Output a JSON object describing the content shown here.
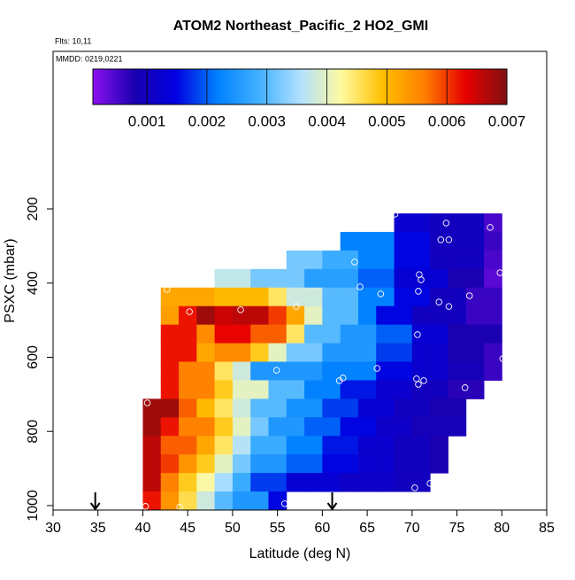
{
  "chart_data": {
    "type": "heatmap",
    "title": "ATOM2 Northeast_Pacific_2 HO2_GMI",
    "subtitle_flights": "Flts: 10,11",
    "subtitle_dates": "MMDD: 0219,0221",
    "xlabel": "Latitude (deg N)",
    "ylabel": "PSXC (mbar)",
    "xlim": [
      30,
      85
    ],
    "xticks": [
      30,
      35,
      40,
      45,
      50,
      55,
      60,
      65,
      70,
      75,
      80,
      85
    ],
    "ylim": [
      1012,
      -225
    ],
    "yticks": [
      200,
      400,
      600,
      800,
      1000
    ],
    "colorbar": {
      "lim": [
        0.0001,
        0.007
      ],
      "ticks": [
        0.001,
        0.002,
        0.003,
        0.004,
        0.005,
        0.006,
        0.007
      ],
      "colors": [
        "#8b10f0",
        "#1a00b0",
        "#0000e0",
        "#0080ff",
        "#40b0ff",
        "#b0e0ff",
        "#fffaa0",
        "#ffc000",
        "#ff8000",
        "#e80000",
        "#801010"
      ]
    },
    "grid": {
      "lat_edges": [
        40,
        42,
        44,
        46,
        48,
        50,
        52,
        54,
        56,
        58,
        60,
        62,
        64,
        66,
        68,
        70,
        72,
        74,
        76,
        78,
        80
      ],
      "pressure_edges": [
        212,
        262,
        312,
        362,
        412,
        462,
        512,
        562,
        612,
        662,
        712,
        762,
        812,
        862,
        912,
        962,
        1012
      ],
      "values": [
        [
          null,
          null,
          null,
          null,
          null,
          null,
          null,
          null,
          null,
          null,
          null,
          null,
          null,
          null,
          0.0012,
          0.0012,
          0.001,
          0.001,
          0.001,
          0.0005
        ],
        [
          null,
          null,
          null,
          null,
          null,
          null,
          null,
          null,
          null,
          null,
          null,
          0.0022,
          0.0022,
          0.0022,
          0.0015,
          0.0015,
          0.001,
          0.001,
          0.001,
          0.0006
        ],
        [
          null,
          null,
          null,
          null,
          null,
          null,
          null,
          null,
          0.0032,
          0.0032,
          0.0028,
          0.0028,
          0.0022,
          0.0022,
          0.0015,
          0.0015,
          0.001,
          0.001,
          0.001,
          0.0005
        ],
        [
          null,
          null,
          null,
          null,
          0.0037,
          0.0037,
          0.0032,
          0.0032,
          0.0032,
          0.0026,
          0.0026,
          0.0026,
          0.002,
          0.002,
          0.0013,
          0.0013,
          0.0013,
          0.0008,
          0.0008,
          0.0004
        ],
        [
          null,
          0.0052,
          0.0052,
          0.0052,
          0.005,
          0.005,
          0.005,
          0.0045,
          0.0038,
          0.0038,
          0.003,
          0.003,
          0.0022,
          0.0022,
          0.0015,
          0.0015,
          0.001,
          0.001,
          0.0006,
          0.0006
        ],
        [
          null,
          0.0053,
          0.0062,
          0.0068,
          0.0065,
          0.0066,
          0.0066,
          0.006,
          0.0052,
          0.004,
          0.003,
          0.003,
          0.0022,
          0.0015,
          0.0015,
          0.001,
          0.001,
          0.001,
          0.0006,
          0.0006
        ],
        [
          null,
          0.0062,
          0.0062,
          0.0055,
          0.0063,
          0.0063,
          0.0058,
          0.0058,
          0.0045,
          0.003,
          0.003,
          0.0025,
          0.0025,
          0.002,
          0.002,
          0.0013,
          0.0013,
          0.0008,
          0.0008,
          0.0008
        ],
        [
          null,
          0.0062,
          0.0062,
          0.0052,
          0.0055,
          0.0055,
          0.0048,
          0.004,
          0.0032,
          0.0032,
          0.0025,
          0.0025,
          0.0025,
          0.0018,
          0.0018,
          0.0012,
          0.0012,
          0.0008,
          0.0008,
          0.0006
        ],
        [
          null,
          0.0062,
          0.0056,
          0.0056,
          0.0045,
          0.0038,
          0.0025,
          0.0025,
          0.0025,
          0.0025,
          0.0022,
          0.0022,
          0.0022,
          0.0015,
          0.0015,
          0.0012,
          0.0012,
          0.0009,
          0.0009,
          0.0006
        ],
        [
          null,
          0.0062,
          0.0056,
          0.0056,
          0.0048,
          0.004,
          0.004,
          0.003,
          0.003,
          0.0022,
          0.0022,
          0.0016,
          0.0016,
          0.0012,
          0.0012,
          0.001,
          0.001,
          0.0007,
          0.0007,
          null
        ],
        [
          0.0068,
          0.0068,
          0.0058,
          0.005,
          0.0045,
          0.0038,
          0.003,
          0.003,
          0.0024,
          0.0024,
          0.0018,
          0.0018,
          0.0013,
          0.0013,
          0.001,
          0.001,
          0.0008,
          0.0008,
          null,
          null
        ],
        [
          0.0068,
          0.0062,
          0.0056,
          0.0056,
          0.0048,
          0.004,
          0.0032,
          0.0025,
          0.0025,
          0.002,
          0.002,
          0.0015,
          0.0015,
          0.0011,
          0.0011,
          0.0009,
          0.0009,
          0.0009,
          null,
          null
        ],
        [
          0.0066,
          0.0058,
          0.0058,
          0.0052,
          0.0045,
          0.0036,
          0.0028,
          0.0028,
          0.0022,
          0.0022,
          0.0016,
          0.0016,
          0.0012,
          0.0012,
          0.001,
          0.001,
          0.0008,
          null,
          null,
          null
        ],
        [
          0.0066,
          0.006,
          0.0054,
          0.0048,
          0.004,
          0.0032,
          0.0025,
          0.0025,
          0.002,
          0.002,
          0.0015,
          0.0015,
          0.0012,
          0.0012,
          0.001,
          0.001,
          0.0008,
          null,
          null,
          null
        ],
        [
          0.0066,
          0.0056,
          0.0048,
          0.0042,
          0.0035,
          0.0028,
          0.0018,
          0.0018,
          0.0013,
          0.0013,
          0.0013,
          0.0011,
          0.0011,
          0.0011,
          0.001,
          0.001,
          null,
          null,
          null,
          null
        ],
        [
          0.0062,
          0.0054,
          0.0046,
          0.0038,
          0.003,
          0.0025,
          0.0025,
          0.0015,
          null,
          null,
          null,
          null,
          null,
          null,
          null,
          null,
          null,
          null,
          null,
          null
        ]
      ]
    },
    "flight_points": {
      "lat": [
        68.1,
        73.8,
        78.7,
        73.2,
        74.1,
        63.6,
        70.8,
        71.0,
        79.8,
        42.7,
        64.2,
        66.5,
        70.7,
        76.4,
        73.0,
        74.1,
        45.2,
        50.9,
        57.1,
        70.6,
        80.1,
        54.9,
        66.1,
        62.3,
        61.9,
        70.5,
        70.7,
        71.3,
        75.9,
        40.5,
        70.3,
        72.0,
        40.3,
        44.1,
        55.8
      ],
      "pressure": [
        214,
        238,
        250,
        283,
        283,
        343,
        377,
        391,
        372,
        417,
        410,
        429,
        422,
        434,
        451,
        463,
        477,
        472,
        463,
        539,
        604,
        635,
        630,
        656,
        663,
        658,
        673,
        663,
        682,
        723,
        952,
        940,
        1002,
        1004,
        995
      ]
    },
    "arrows_lat": [
      34.7,
      61.1
    ]
  }
}
